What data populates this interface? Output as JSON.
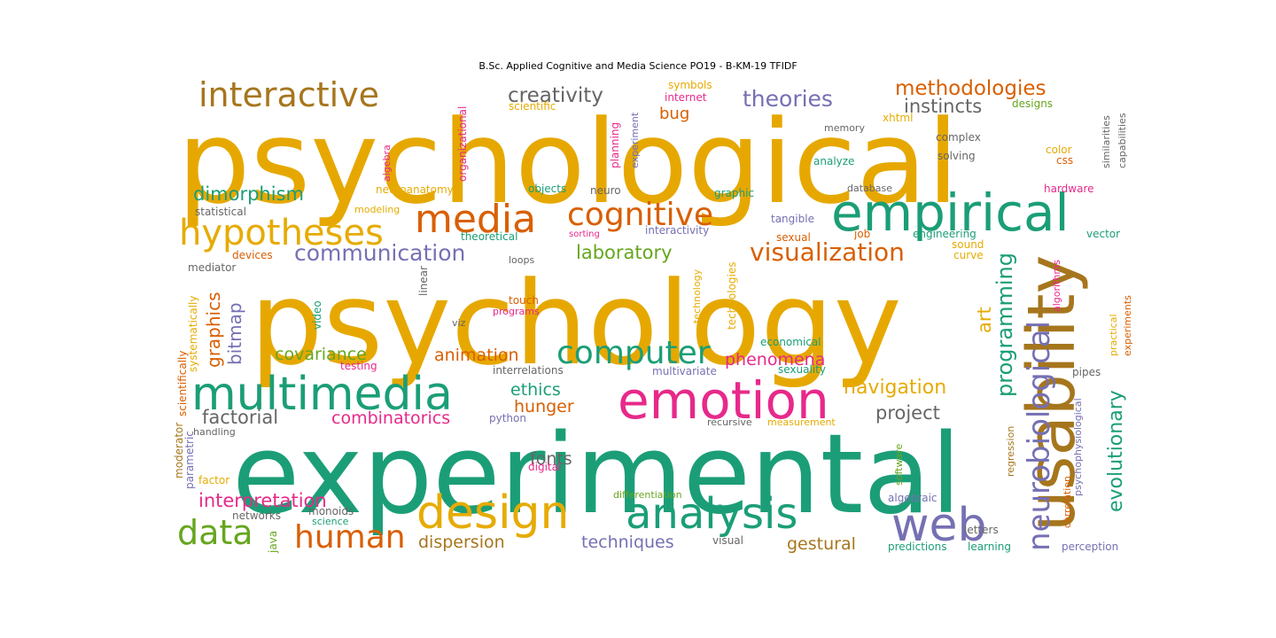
{
  "chart_data": {
    "type": "wordcloud",
    "title": "B.Sc. Applied Cognitive and Media Science  PO19 - B-KM-19 TFIDF",
    "words": [
      {
        "text": "psychological",
        "color": "#e6a800"
      },
      {
        "text": "psychology",
        "color": "#e6a800"
      },
      {
        "text": "experimental",
        "color": "#1b9e77"
      },
      {
        "text": "usability",
        "color": "#a6761d"
      },
      {
        "text": "empirical",
        "color": "#1b9e77"
      },
      {
        "text": "multimedia",
        "color": "#1b9e77"
      },
      {
        "text": "emotion",
        "color": "#e7298a"
      },
      {
        "text": "analysis",
        "color": "#1b9e77"
      },
      {
        "text": "design",
        "color": "#e6ab02"
      },
      {
        "text": "media",
        "color": "#d95f02"
      },
      {
        "text": "cognitive",
        "color": "#d95f02"
      },
      {
        "text": "hypotheses",
        "color": "#e6ab02"
      },
      {
        "text": "interactive",
        "color": "#a6761d"
      },
      {
        "text": "web",
        "color": "#7570b3"
      },
      {
        "text": "computer",
        "color": "#1b9e77"
      },
      {
        "text": "neurobiological",
        "color": "#7570b3"
      },
      {
        "text": "data",
        "color": "#66a61e"
      },
      {
        "text": "human",
        "color": "#d95f02"
      },
      {
        "text": "visualization",
        "color": "#d95f02"
      },
      {
        "text": "methodologies",
        "color": "#d95f02"
      },
      {
        "text": "theories",
        "color": "#7570b3"
      },
      {
        "text": "creativity",
        "color": "#666666"
      },
      {
        "text": "communication",
        "color": "#7570b3"
      },
      {
        "text": "programming",
        "color": "#1b9e77"
      },
      {
        "text": "evolutionary",
        "color": "#1b9e77"
      },
      {
        "text": "navigation",
        "color": "#e6ab02"
      },
      {
        "text": "instincts",
        "color": "#666666"
      },
      {
        "text": "dimorphism",
        "color": "#1b9e77"
      },
      {
        "text": "laboratory",
        "color": "#66a61e"
      },
      {
        "text": "interpretation",
        "color": "#e7298a"
      },
      {
        "text": "factorial",
        "color": "#666666"
      },
      {
        "text": "project",
        "color": "#666666"
      },
      {
        "text": "phenomena",
        "color": "#e7298a"
      },
      {
        "text": "covariance",
        "color": "#66a61e"
      },
      {
        "text": "animation",
        "color": "#d95f02"
      },
      {
        "text": "ethics",
        "color": "#1b9e77"
      },
      {
        "text": "hunger",
        "color": "#d95f02"
      },
      {
        "text": "combinatorics",
        "color": "#e7298a"
      },
      {
        "text": "graphics",
        "color": "#d95f02"
      },
      {
        "text": "bitmap",
        "color": "#7570b3"
      },
      {
        "text": "art",
        "color": "#e6ab02"
      },
      {
        "text": "fonts",
        "color": "#666666"
      },
      {
        "text": "dispersion",
        "color": "#a6761d"
      },
      {
        "text": "techniques",
        "color": "#7570b3"
      },
      {
        "text": "gestural",
        "color": "#a6761d"
      },
      {
        "text": "bug",
        "color": "#d95f02"
      },
      {
        "text": "statistical",
        "color": "#666666"
      },
      {
        "text": "neuroanatomy",
        "color": "#e6ab02"
      },
      {
        "text": "modeling",
        "color": "#e6ab02"
      },
      {
        "text": "objects",
        "color": "#1b9e77"
      },
      {
        "text": "neuro",
        "color": "#666666"
      },
      {
        "text": "graphic",
        "color": "#1b9e77"
      },
      {
        "text": "tangible",
        "color": "#7570b3"
      },
      {
        "text": "database",
        "color": "#666666"
      },
      {
        "text": "hardware",
        "color": "#e7298a"
      },
      {
        "text": "theoretical",
        "color": "#1b9e77"
      },
      {
        "text": "sorting",
        "color": "#e7298a"
      },
      {
        "text": "interactivity",
        "color": "#7570b3"
      },
      {
        "text": "sexual",
        "color": "#d95f02"
      },
      {
        "text": "job",
        "color": "#d95f02"
      },
      {
        "text": "engineering",
        "color": "#1b9e77"
      },
      {
        "text": "sound",
        "color": "#e6ab02"
      },
      {
        "text": "curve",
        "color": "#e6ab02"
      },
      {
        "text": "vector",
        "color": "#1b9e77"
      },
      {
        "text": "devices",
        "color": "#d95f02"
      },
      {
        "text": "mediator",
        "color": "#666666"
      },
      {
        "text": "loops",
        "color": "#666666"
      },
      {
        "text": "touch",
        "color": "#d95f02"
      },
      {
        "text": "programs",
        "color": "#e7298a"
      },
      {
        "text": "viz",
        "color": "#666666"
      },
      {
        "text": "video",
        "color": "#1b9e77"
      },
      {
        "text": "linear",
        "color": "#666666"
      },
      {
        "text": "technology",
        "color": "#e6ab02"
      },
      {
        "text": "technologies",
        "color": "#e6ab02"
      },
      {
        "text": "economical",
        "color": "#1b9e77"
      },
      {
        "text": "sexuality",
        "color": "#1b9e77"
      },
      {
        "text": "multivariate",
        "color": "#7570b3"
      },
      {
        "text": "interrelations",
        "color": "#666666"
      },
      {
        "text": "testing",
        "color": "#e7298a"
      },
      {
        "text": "python",
        "color": "#7570b3"
      },
      {
        "text": "recursive",
        "color": "#666666"
      },
      {
        "text": "measurement",
        "color": "#e6ab02"
      },
      {
        "text": "handling",
        "color": "#666666"
      },
      {
        "text": "digital",
        "color": "#e7298a"
      },
      {
        "text": "differentiation",
        "color": "#66a61e"
      },
      {
        "text": "factor",
        "color": "#e6ab02"
      },
      {
        "text": "networks",
        "color": "#666666"
      },
      {
        "text": "monoids",
        "color": "#666666"
      },
      {
        "text": "science",
        "color": "#1b9e77"
      },
      {
        "text": "java",
        "color": "#66a61e"
      },
      {
        "text": "visual",
        "color": "#666666"
      },
      {
        "text": "algebraic",
        "color": "#7570b3"
      },
      {
        "text": "letters",
        "color": "#666666"
      },
      {
        "text": "predictions",
        "color": "#1b9e77"
      },
      {
        "text": "learning",
        "color": "#1b9e77"
      },
      {
        "text": "perception",
        "color": "#7570b3"
      },
      {
        "text": "symbols",
        "color": "#e6ab02"
      },
      {
        "text": "internet",
        "color": "#e7298a"
      },
      {
        "text": "scientific",
        "color": "#e6ab02"
      },
      {
        "text": "xhtml",
        "color": "#e6ab02"
      },
      {
        "text": "memory",
        "color": "#666666"
      },
      {
        "text": "complex",
        "color": "#666666"
      },
      {
        "text": "solving",
        "color": "#666666"
      },
      {
        "text": "analyze",
        "color": "#1b9e77"
      },
      {
        "text": "designs",
        "color": "#66a61e"
      },
      {
        "text": "color",
        "color": "#e6ab02"
      },
      {
        "text": "css",
        "color": "#d95f02"
      },
      {
        "text": "pipes",
        "color": "#666666"
      },
      {
        "text": "organizational",
        "color": "#e7298a"
      },
      {
        "text": "planning",
        "color": "#e7298a"
      },
      {
        "text": "experiment",
        "color": "#7570b3"
      },
      {
        "text": "algebra",
        "color": "#e7298a"
      },
      {
        "text": "similarities",
        "color": "#666666"
      },
      {
        "text": "capabilities",
        "color": "#666666"
      },
      {
        "text": "algorithms",
        "color": "#e7298a"
      },
      {
        "text": "practical",
        "color": "#e6ab02"
      },
      {
        "text": "experiments",
        "color": "#d95f02"
      },
      {
        "text": "psychophysiological",
        "color": "#7570b3"
      },
      {
        "text": "regression",
        "color": "#a6761d"
      },
      {
        "text": "correlation",
        "color": "#d95f02"
      },
      {
        "text": "software",
        "color": "#66a61e"
      },
      {
        "text": "scientifically",
        "color": "#d95f02"
      },
      {
        "text": "systematically",
        "color": "#e6ab02"
      },
      {
        "text": "moderator",
        "color": "#a6761d"
      },
      {
        "text": "parametric",
        "color": "#7570b3"
      }
    ]
  }
}
